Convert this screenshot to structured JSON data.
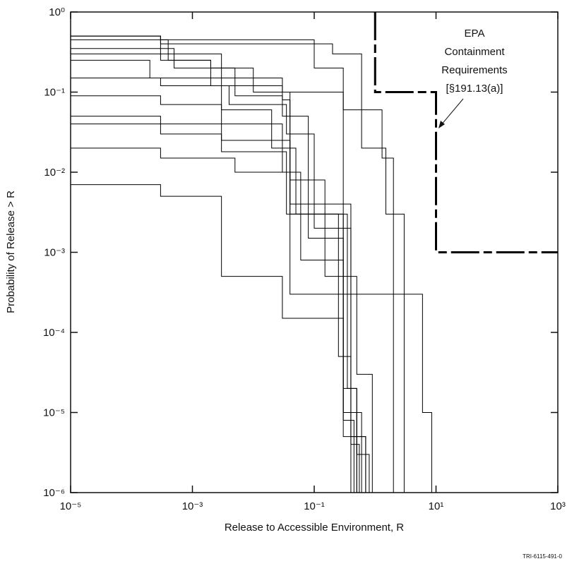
{
  "chart_data": {
    "type": "step",
    "xscale": "log",
    "yscale": "log",
    "xlabel": "Release to Accessible Environment, R",
    "ylabel": "Probability of Release > R",
    "annotation": [
      "EPA",
      "Containment",
      "Requirements",
      "[§191.13(a)]"
    ],
    "footnote": "TRI-6115-491-0",
    "color": "#000000",
    "xlim": [
      1e-05,
      1000
    ],
    "ylim": [
      1e-06,
      1
    ],
    "xticks": [
      {
        "value": 1e-05,
        "label": "10⁻⁵"
      },
      {
        "value": 0.001,
        "label": "10⁻³"
      },
      {
        "value": 0.1,
        "label": "10⁻¹"
      },
      {
        "value": 10,
        "label": "10¹"
      },
      {
        "value": 1000,
        "label": "10³"
      }
    ],
    "yticks": [
      {
        "value": 1,
        "label": "10⁰"
      },
      {
        "value": 0.1,
        "label": "10⁻¹"
      },
      {
        "value": 0.01,
        "label": "10⁻²"
      },
      {
        "value": 0.001,
        "label": "10⁻³"
      },
      {
        "value": 0.0001,
        "label": "10⁻⁴"
      },
      {
        "value": 1e-05,
        "label": "10⁻⁵"
      },
      {
        "value": 1e-06,
        "label": "10⁻⁶"
      }
    ],
    "series": [
      {
        "x": [
          1e-05,
          0.0003,
          0.003,
          0.03,
          0.04,
          0.3,
          0.5,
          0.8
        ],
        "values": [
          0.5,
          0.3,
          0.15,
          0.08,
          0.004,
          2e-05,
          3e-06,
          1e-06
        ]
      },
      {
        "x": [
          1e-05,
          0.0004,
          0.002,
          0.01,
          0.04,
          0.25,
          0.4,
          0.7
        ],
        "values": [
          0.45,
          0.25,
          0.2,
          0.1,
          0.003,
          5e-05,
          5e-06,
          1e-06
        ]
      },
      {
        "x": [
          1e-05,
          0.0003,
          0.1,
          0.3,
          1.3,
          2
        ],
        "values": [
          0.5,
          0.45,
          0.2,
          0.06,
          0.015,
          1e-06
        ]
      },
      {
        "x": [
          1e-05,
          0.0005,
          0.005,
          0.03,
          0.08,
          0.3,
          0.6
        ],
        "values": [
          0.35,
          0.2,
          0.09,
          0.05,
          0.0015,
          1e-05,
          1e-06
        ]
      },
      {
        "x": [
          1e-05,
          0.0002,
          0.003,
          0.02,
          0.05,
          0.3,
          0.45
        ],
        "values": [
          0.25,
          0.15,
          0.06,
          0.02,
          0.003,
          8e-06,
          1e-06
        ]
      },
      {
        "x": [
          1e-05,
          0.0003,
          0.004,
          0.035,
          0.1,
          0.4,
          0.55
        ],
        "values": [
          0.15,
          0.12,
          0.07,
          0.03,
          0.002,
          4e-06,
          1e-06
        ]
      },
      {
        "x": [
          1e-05,
          0.0003,
          0.003,
          0.03,
          0.06,
          0.3,
          0.5
        ],
        "values": [
          0.09,
          0.07,
          0.04,
          0.01,
          0.0008,
          1e-05,
          1e-06
        ]
      },
      {
        "x": [
          1e-05,
          0.0003,
          0.003,
          0.04,
          0.15,
          0.5,
          0.9
        ],
        "values": [
          0.05,
          0.04,
          0.025,
          0.008,
          0.0005,
          3e-05,
          1e-06
        ]
      },
      {
        "x": [
          1e-05,
          0.0003,
          0.005,
          0.04,
          6,
          8.5
        ],
        "values": [
          0.02,
          0.015,
          0.01,
          0.0003,
          1e-05,
          1e-06
        ]
      },
      {
        "x": [
          1e-05,
          0.0003,
          0.003,
          0.03,
          0.3,
          0.7
        ],
        "values": [
          0.007,
          0.005,
          0.0005,
          0.00015,
          5e-06,
          1e-06
        ]
      },
      {
        "x": [
          1e-05,
          0.0003,
          0.2,
          0.6,
          1.5,
          3
        ],
        "values": [
          0.5,
          0.4,
          0.3,
          0.02,
          0.003,
          1e-06
        ]
      },
      {
        "x": [
          1e-05,
          0.0003,
          0.002,
          0.03,
          0.3,
          0.4
        ],
        "values": [
          0.3,
          0.25,
          0.12,
          0.1,
          0.004,
          1e-06
        ]
      },
      {
        "x": [
          1e-05,
          0.0003,
          0.003,
          0.035,
          0.35,
          0.5
        ],
        "values": [
          0.04,
          0.03,
          0.018,
          0.003,
          2e-05,
          1e-06
        ]
      },
      {
        "x": [
          1,
          1,
          10,
          10,
          1000
        ],
        "values": [
          1,
          0.1,
          0.1,
          0.001,
          0.001
        ],
        "style": "dashed"
      }
    ]
  }
}
